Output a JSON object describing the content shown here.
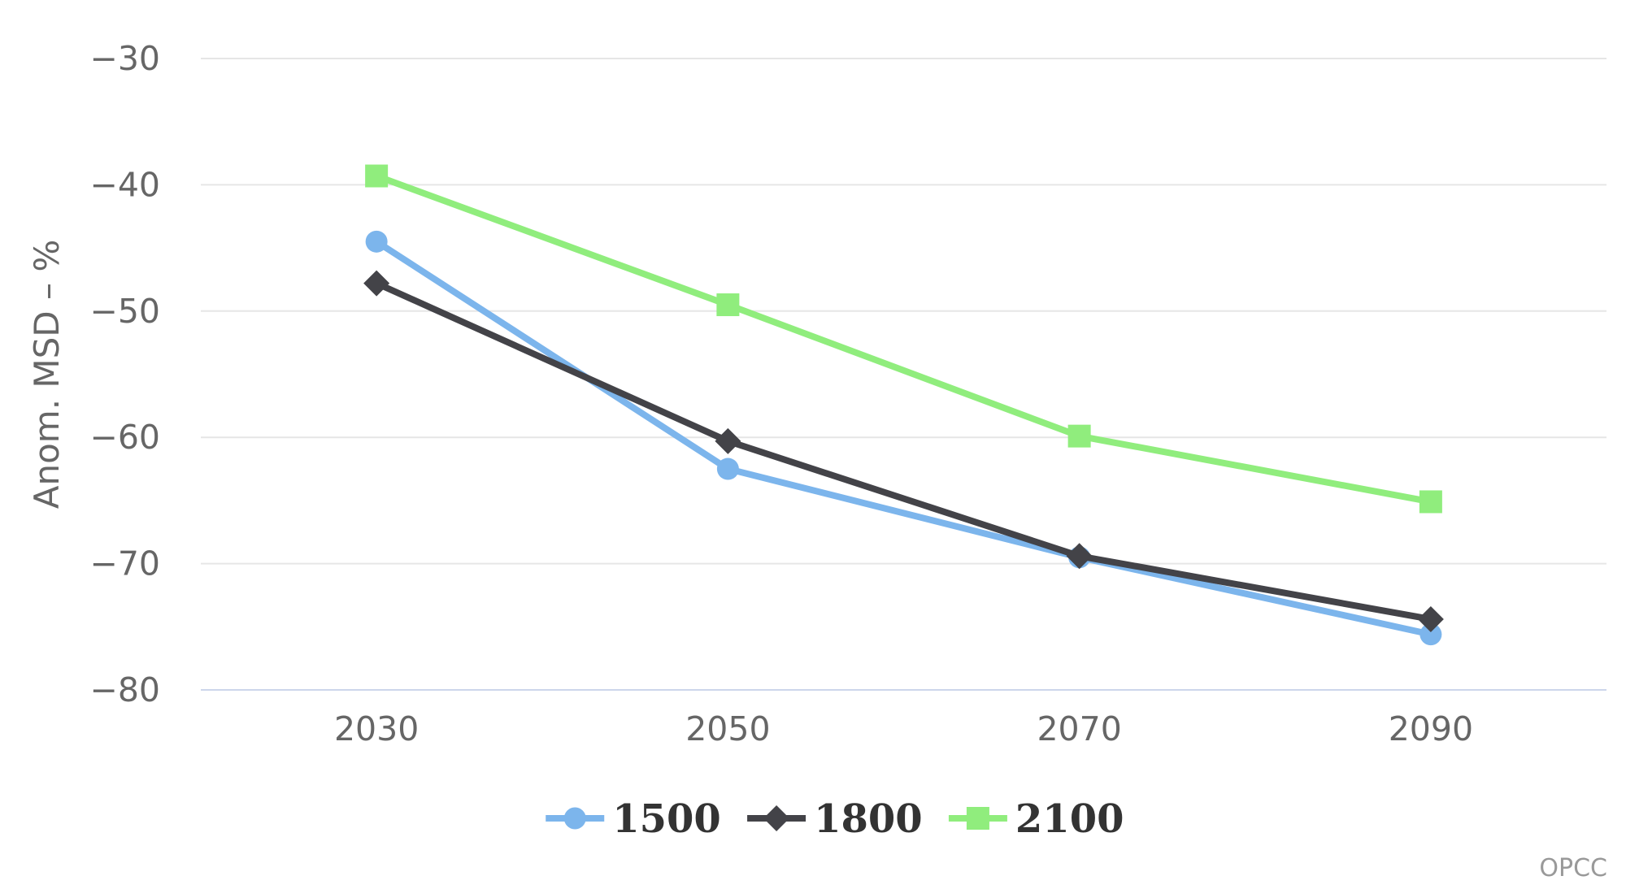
{
  "chart_data": {
    "type": "line",
    "categories": [
      "2030",
      "2050",
      "2070",
      "2090"
    ],
    "series": [
      {
        "name": "1500",
        "color": "#7cb5ec",
        "marker": "circle",
        "values": [
          -44.5,
          -62.5,
          -69.5,
          -75.6
        ]
      },
      {
        "name": "1800",
        "color": "#434348",
        "marker": "diamond",
        "values": [
          -47.8,
          -60.3,
          -69.4,
          -74.4
        ]
      },
      {
        "name": "2100",
        "color": "#90ed7d",
        "marker": "square",
        "values": [
          -39.3,
          -49.5,
          -59.9,
          -65.1
        ]
      }
    ],
    "title": "",
    "xlabel": "",
    "ylabel": "Anom. MSD – %",
    "ylim": [
      -80,
      -30
    ],
    "yticks": [
      -30,
      -40,
      -50,
      -60,
      -70,
      -80
    ],
    "grid": true,
    "legend_position": "bottom"
  },
  "credits": {
    "label": "OPCC"
  },
  "colors": {
    "background": "#ffffff",
    "grid_line": "#e6e6e6",
    "axis_line": "#ccd6eb",
    "tick_label": "#666666",
    "axis_title": "#666666",
    "legend_text": "#333333",
    "credits_text": "#999999"
  }
}
